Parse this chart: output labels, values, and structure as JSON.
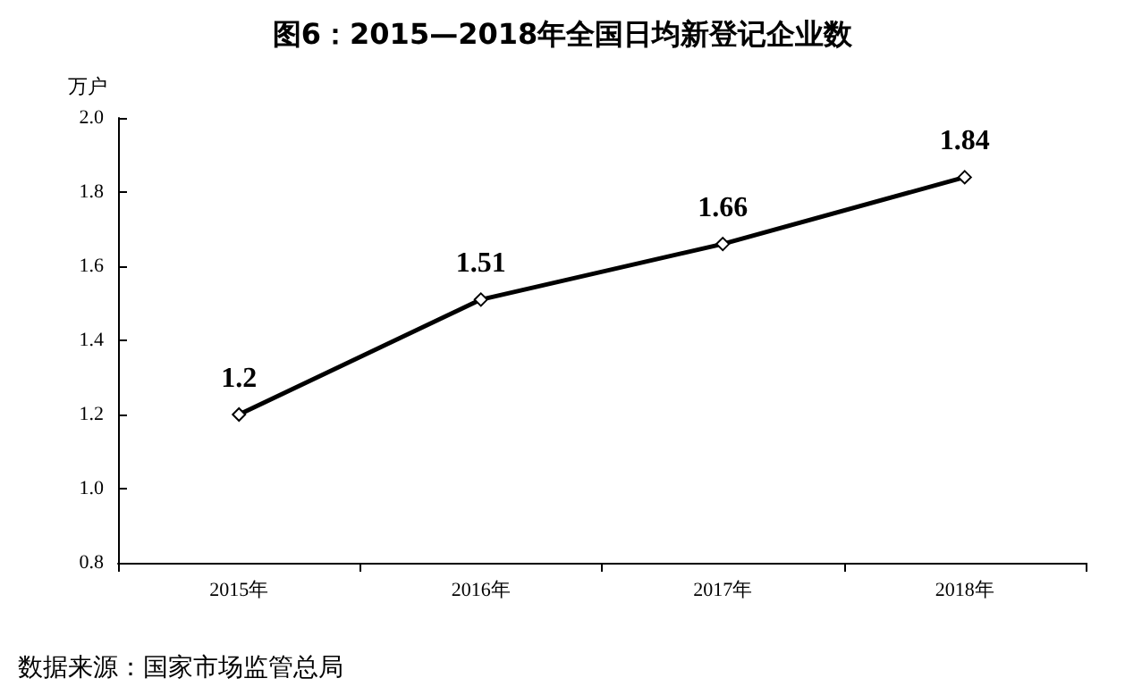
{
  "chart_data": {
    "type": "line",
    "title": "图6：2015—2018年全国日均新登记企业数",
    "ylabel": "万户",
    "categories": [
      "2015年",
      "2016年",
      "2017年",
      "2018年"
    ],
    "series": [
      {
        "color": "#000000",
        "values": [
          1.2,
          1.51,
          1.66,
          1.84
        ]
      }
    ],
    "ylim": [
      0.8,
      2.0
    ],
    "yticks": [
      0.8,
      {
        "value": 1,
        "label": "1.0"
      },
      1.2,
      1.4,
      1.6,
      1.8,
      {
        "value": 2,
        "label": "2.0"
      }
    ],
    "data_labels": true,
    "grid": false,
    "marker": "diamond",
    "line_style": "solid",
    "annotations": [
      "数据来源：国家市场监管总局"
    ]
  }
}
